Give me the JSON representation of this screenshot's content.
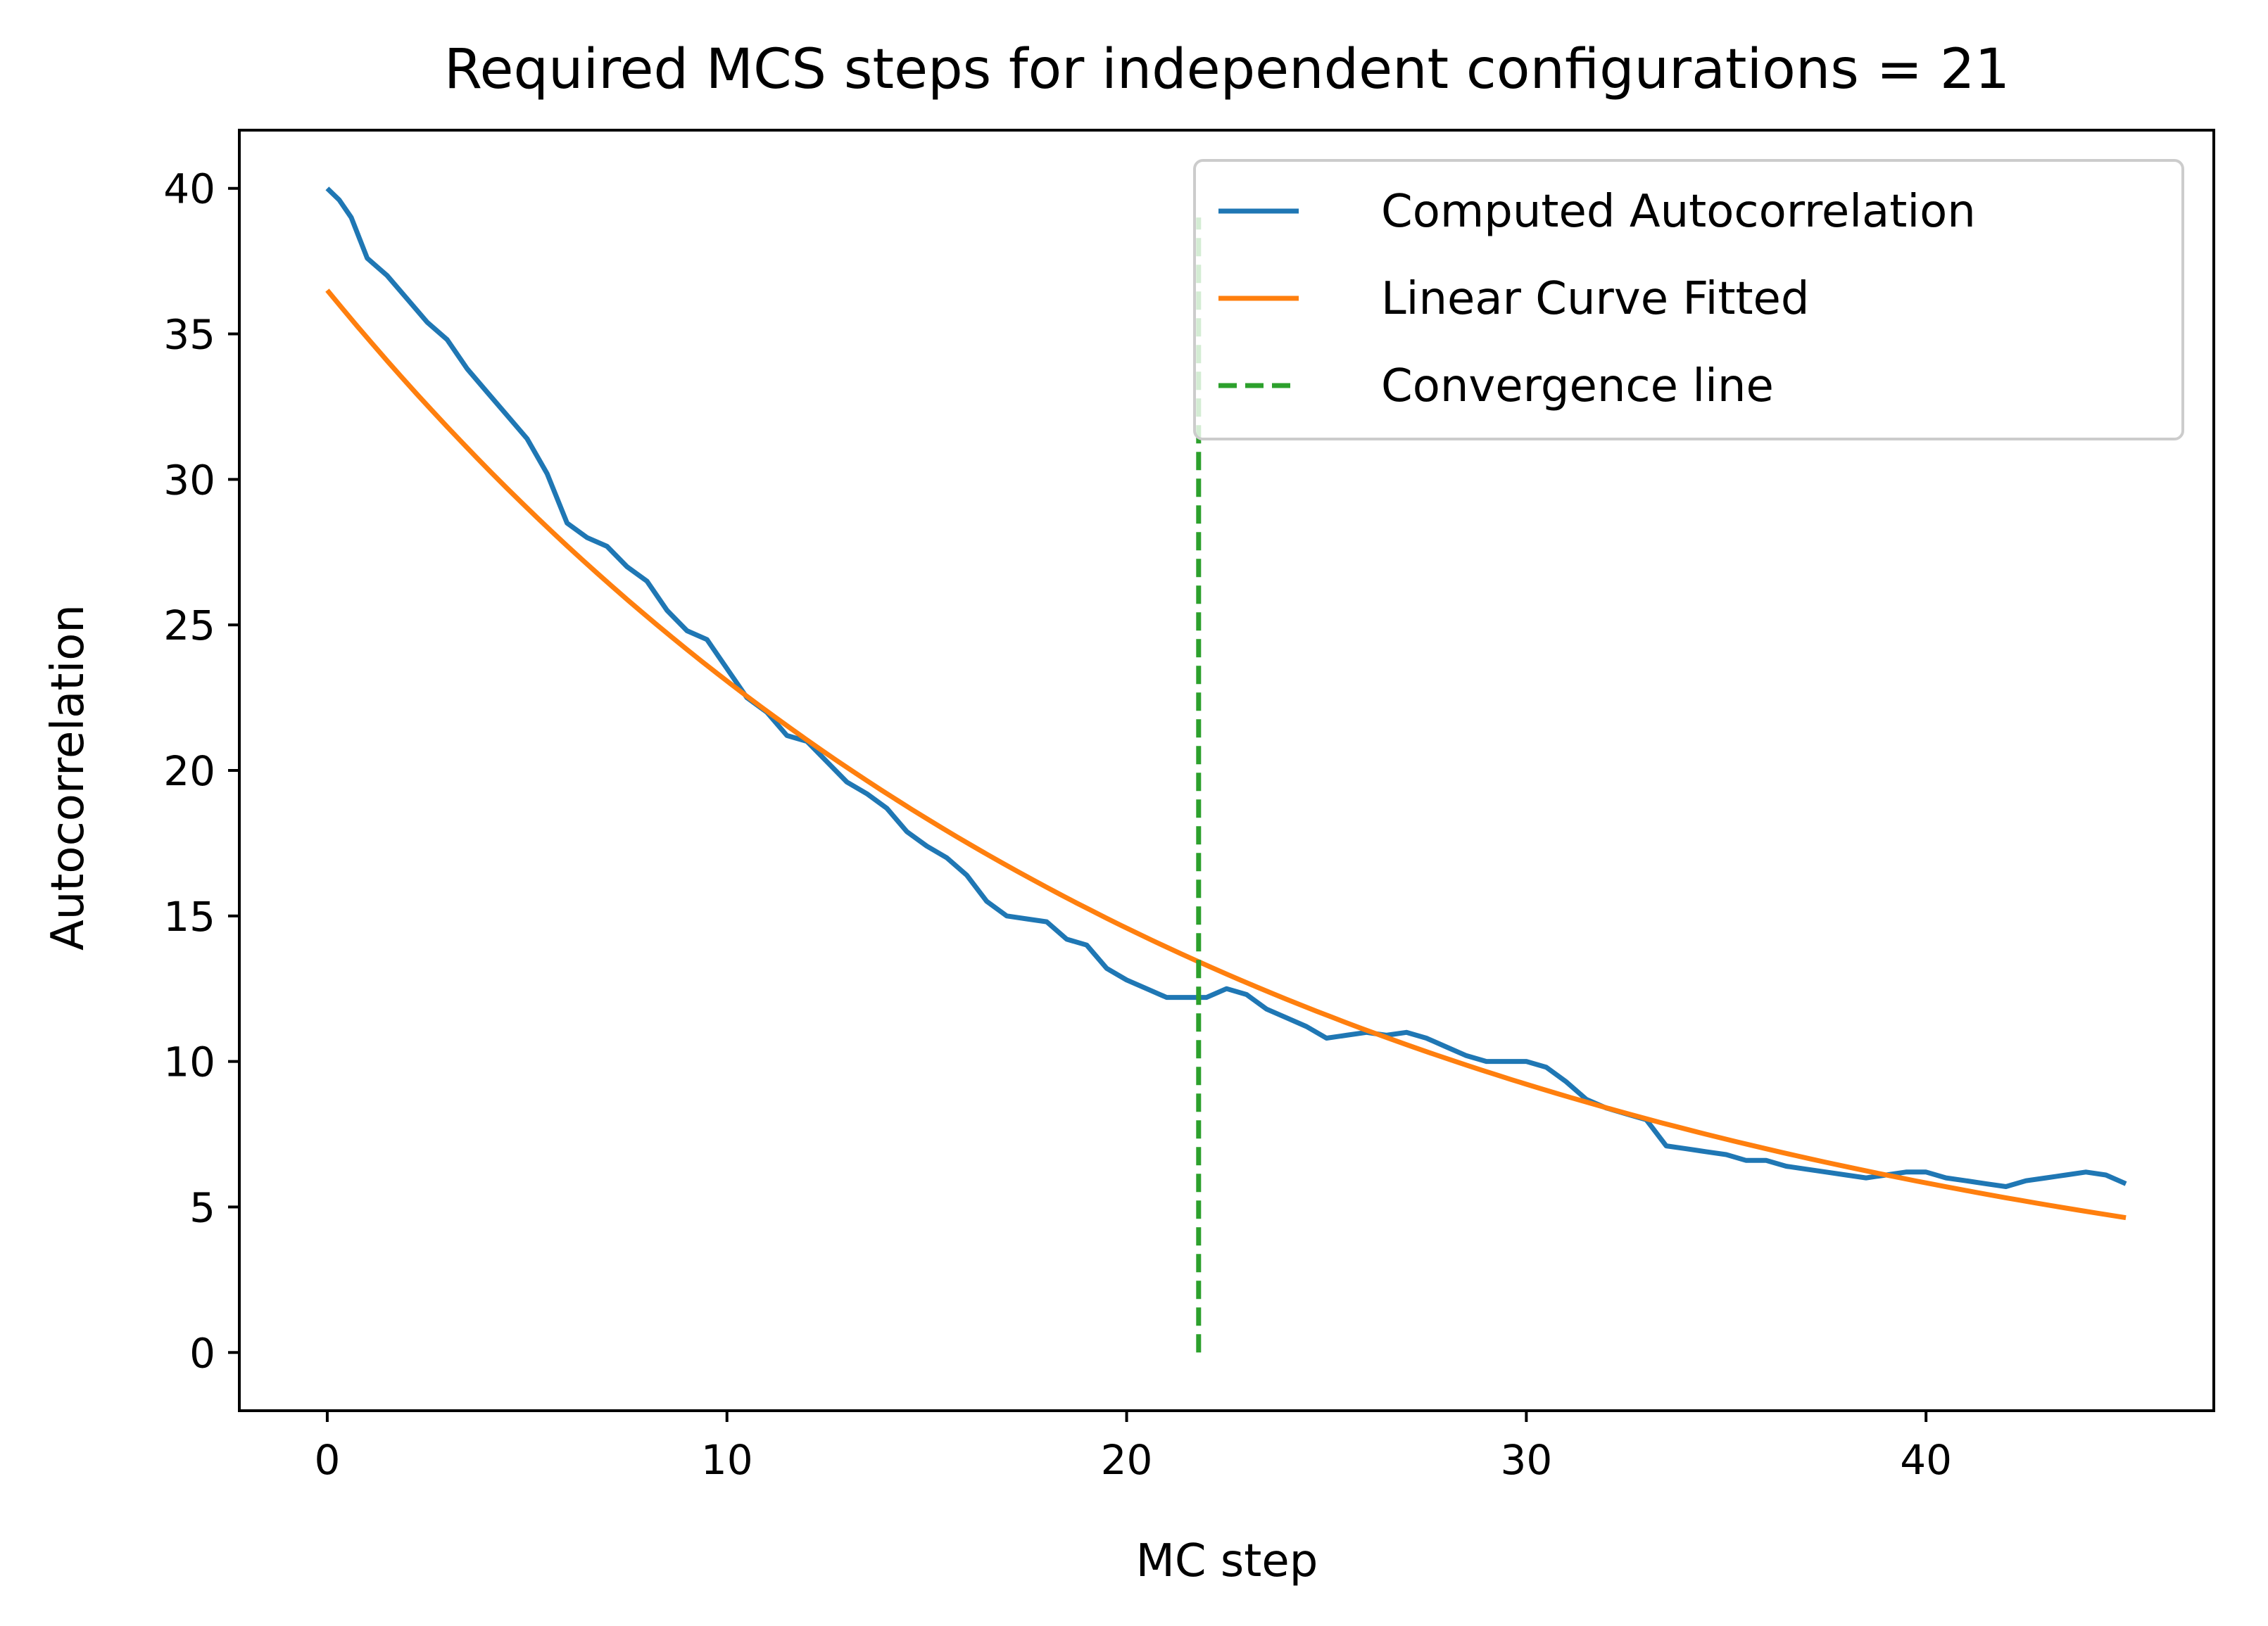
{
  "chart_data": {
    "type": "line",
    "title": "Required MCS steps for independent configurations = 21",
    "xlabel": "MC step",
    "ylabel": "Autocorrelation",
    "xlim": [
      -2.2,
      47.2
    ],
    "ylim": [
      -2,
      42
    ],
    "xticks": [
      0,
      10,
      20,
      30,
      40
    ],
    "yticks": [
      0,
      5,
      10,
      15,
      20,
      25,
      30,
      35,
      40
    ],
    "grid": false,
    "legend_position": "top-right",
    "series": [
      {
        "name": "Computed Autocorrelation",
        "style": "solid",
        "color": "#1f77b4",
        "x": [
          0,
          0.3,
          0.6,
          1,
          1.5,
          2,
          2.5,
          3,
          3.5,
          4,
          4.5,
          5,
          5.5,
          6,
          6.5,
          7,
          7.5,
          8,
          8.5,
          9,
          9.5,
          10,
          10.5,
          11,
          11.5,
          12,
          12.5,
          13,
          13.5,
          14,
          14.5,
          15,
          15.5,
          16,
          16.5,
          17,
          17.5,
          18,
          18.5,
          19,
          19.5,
          20,
          20.5,
          21,
          21.5,
          22,
          22.5,
          23,
          23.5,
          24,
          24.5,
          25,
          25.5,
          26,
          26.5,
          27,
          27.5,
          28,
          28.5,
          29,
          29.5,
          30,
          30.5,
          31,
          31.5,
          32,
          32.5,
          33,
          33.5,
          34,
          34.5,
          35,
          35.5,
          36,
          36.5,
          37,
          37.5,
          38,
          38.5,
          39,
          39.5,
          40,
          40.5,
          41,
          41.5,
          42,
          42.5,
          43,
          43.5,
          44,
          44.5,
          45
        ],
        "values": [
          40,
          39.6,
          39,
          37.6,
          37,
          36.2,
          35.4,
          34.8,
          33.8,
          33,
          32.2,
          31.4,
          30.2,
          28.5,
          28,
          27.7,
          27,
          26.5,
          25.5,
          24.8,
          24.5,
          23.5,
          22.5,
          22,
          21.2,
          21,
          20.3,
          19.6,
          19.2,
          18.7,
          17.9,
          17.4,
          17,
          16.4,
          15.5,
          15,
          14.9,
          14.8,
          14.2,
          14,
          13.2,
          12.8,
          12.5,
          12.2,
          12.2,
          12.2,
          12.5,
          12.3,
          11.8,
          11.5,
          11.2,
          10.8,
          10.9,
          11,
          10.9,
          11,
          10.8,
          10.5,
          10.2,
          10,
          10,
          10,
          9.8,
          9.3,
          8.7,
          8.4,
          8.2,
          8,
          7.1,
          7,
          6.9,
          6.8,
          6.6,
          6.6,
          6.4,
          6.3,
          6.2,
          6.1,
          6,
          6.1,
          6.2,
          6.2,
          6,
          5.9,
          5.8,
          5.7,
          5.9,
          6,
          6.1,
          6.2,
          6.1,
          5.8
        ]
      },
      {
        "name": "Linear Curve Fitted",
        "style": "solid",
        "color": "#ff7f0e",
        "function": "exponential_decay",
        "amplitude": 36.5,
        "decay_length": 21.8,
        "x_range": [
          0,
          45
        ]
      },
      {
        "name": "Convergence line",
        "style": "dashed",
        "color": "#2ca02c",
        "x": [
          21.8,
          21.8
        ],
        "values": [
          0,
          39
        ]
      }
    ]
  }
}
